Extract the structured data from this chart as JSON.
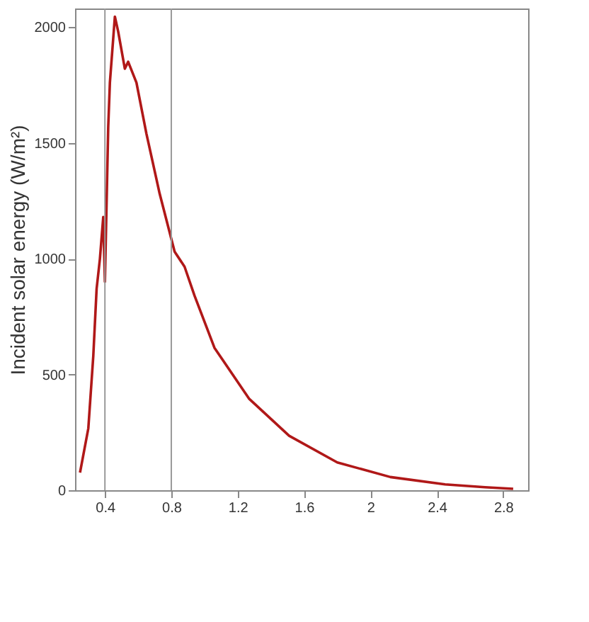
{
  "chart_data": {
    "type": "line",
    "ylabel": "Incident solar energy (W/m²)",
    "x": [
      0.25,
      0.3,
      0.33,
      0.35,
      0.37,
      0.39,
      0.4,
      0.42,
      0.43,
      0.46,
      0.48,
      0.52,
      0.54,
      0.59,
      0.65,
      0.73,
      0.82,
      0.88,
      0.94,
      1.06,
      1.27,
      1.51,
      1.8,
      2.12,
      2.45,
      2.69,
      2.86
    ],
    "series": [
      {
        "color": "#b01818",
        "values": [
          76,
          267,
          580,
          870,
          1000,
          1180,
          900,
          1570,
          1760,
          2045,
          1980,
          1820,
          1850,
          1760,
          1540,
          1280,
          1030,
          965,
          840,
          615,
          394,
          235,
          120,
          57,
          25,
          13,
          6
        ]
      }
    ],
    "xlim": [
      0.22,
      2.95
    ],
    "ylim": [
      0,
      2080
    ],
    "xticks": [
      0.4,
      0.8,
      1.2,
      1.6,
      2,
      2.4,
      2.8
    ],
    "yticks": [
      0,
      500,
      1000,
      1500,
      2000
    ],
    "ref_lines": [
      {
        "axis": "x",
        "value": 0.4,
        "color": "#999999"
      },
      {
        "axis": "x",
        "value": 0.8,
        "color": "#999999"
      }
    ],
    "grid": false,
    "marker": "none",
    "line_style": "solid"
  }
}
